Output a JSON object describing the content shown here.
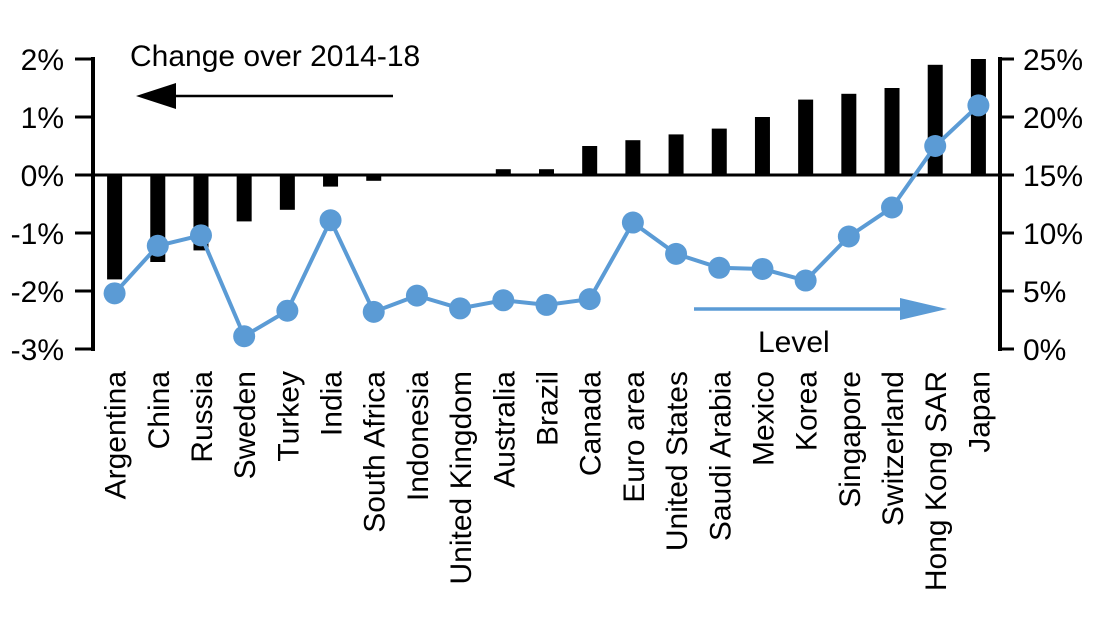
{
  "chart_data": {
    "type": "combo-bar-line",
    "title": "",
    "categories": [
      "Argentina",
      "China",
      "Russia",
      "Sweden",
      "Turkey",
      "India",
      "South Africa",
      "Indonesia",
      "United Kingdom",
      "Australia",
      "Brazil",
      "Canada",
      "Euro area",
      "United States",
      "Saudi Arabia",
      "Mexico",
      "Korea",
      "Singapore",
      "Switzerland",
      "Hong Kong SAR",
      "Japan"
    ],
    "series": [
      {
        "name": "Change over 2014-18",
        "type": "bar",
        "axis": "left",
        "color": "#000000",
        "values": [
          -1.8,
          -1.5,
          -1.3,
          -0.8,
          -0.6,
          -0.2,
          -0.1,
          0,
          0,
          0.1,
          0.1,
          0.5,
          0.6,
          0.7,
          0.8,
          1.0,
          1.3,
          1.4,
          1.5,
          1.9,
          2.0
        ]
      },
      {
        "name": "Level",
        "type": "line",
        "axis": "right",
        "color": "#5B9BD5",
        "values": [
          4.8,
          8.9,
          9.8,
          1.1,
          3.3,
          11.1,
          3.2,
          4.6,
          3.5,
          4.2,
          3.8,
          4.3,
          10.9,
          8.2,
          7.0,
          6.9,
          5.9,
          9.7,
          12.2,
          17.5,
          21.0
        ]
      }
    ],
    "left_axis": {
      "unit": "%",
      "min": -3,
      "max": 2,
      "tick_values": [
        2,
        1,
        0,
        -1,
        -2,
        -3
      ],
      "tick_labels": [
        "2%",
        "1%",
        "0%",
        "-1%",
        "-2%",
        "-3%"
      ]
    },
    "right_axis": {
      "unit": "%",
      "min": 0,
      "max": 25,
      "tick_values": [
        25,
        20,
        15,
        10,
        5,
        0
      ],
      "tick_labels": [
        "25%",
        "20%",
        "15%",
        "10%",
        "5%",
        "0%"
      ]
    },
    "annotations": {
      "change_label": "Change over 2014-18",
      "change_arrow_direction": "left",
      "level_label": "Level",
      "level_arrow_direction": "right"
    },
    "legend_position": "none",
    "grid": "off"
  }
}
